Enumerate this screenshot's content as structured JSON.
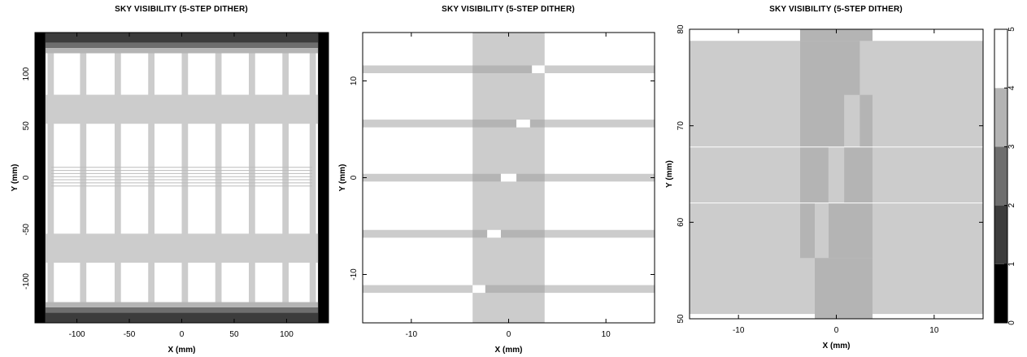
{
  "chart_data": [
    {
      "type": "heatmap",
      "title": "SKY VISIBILITY (5-STEP DITHER)",
      "xlabel": "X (mm)",
      "ylabel": "Y (mm)",
      "xlim": [
        -140,
        140
      ],
      "ylim": [
        -140,
        140
      ],
      "xticks": [
        -100,
        -50,
        0,
        50,
        100
      ],
      "yticks": [
        -100,
        -50,
        0,
        50,
        100
      ],
      "background_level": 5,
      "regions": [
        {
          "x": [
            -140,
            -130
          ],
          "y": [
            -140,
            140
          ],
          "level": 0
        },
        {
          "x": [
            130,
            140
          ],
          "y": [
            -140,
            140
          ],
          "level": 0
        },
        {
          "x": [
            -130,
            130
          ],
          "y": [
            130,
            140
          ],
          "level": 1
        },
        {
          "x": [
            -130,
            130
          ],
          "y": [
            125,
            130
          ],
          "level": 2
        },
        {
          "x": [
            -130,
            130
          ],
          "y": [
            120,
            125
          ],
          "level": 3
        },
        {
          "x": [
            -130,
            130
          ],
          "y": [
            -140,
            -130
          ],
          "level": 1
        },
        {
          "x": [
            -130,
            130
          ],
          "y": [
            -130,
            -125
          ],
          "level": 2
        },
        {
          "x": [
            -130,
            130
          ],
          "y": [
            -125,
            -120
          ],
          "level": 3
        },
        {
          "x": [
            -130,
            130
          ],
          "y": [
            52,
            80
          ],
          "level": 4
        },
        {
          "x": [
            -130,
            130
          ],
          "y": [
            -82,
            -54
          ],
          "level": 4
        },
        {
          "x": [
            -128,
            -122
          ],
          "y": [
            -120,
            120
          ],
          "level": 4
        },
        {
          "x": [
            -97,
            -91
          ],
          "y": [
            -120,
            120
          ],
          "level": 4
        },
        {
          "x": [
            -64,
            -58
          ],
          "y": [
            -120,
            120
          ],
          "level": 4
        },
        {
          "x": [
            -32,
            -26
          ],
          "y": [
            -120,
            120
          ],
          "level": 4
        },
        {
          "x": [
            0,
            6
          ],
          "y": [
            -120,
            120
          ],
          "level": 4
        },
        {
          "x": [
            32,
            38
          ],
          "y": [
            -120,
            120
          ],
          "level": 4
        },
        {
          "x": [
            64,
            70
          ],
          "y": [
            -120,
            120
          ],
          "level": 4
        },
        {
          "x": [
            96,
            102
          ],
          "y": [
            -120,
            120
          ],
          "level": 4
        },
        {
          "x": [
            122,
            128
          ],
          "y": [
            -120,
            120
          ],
          "level": 4
        }
      ],
      "lines_y": [
        10,
        7,
        4,
        1,
        -2,
        -5,
        -8
      ]
    },
    {
      "type": "heatmap",
      "title": "SKY VISIBILITY (5-STEP DITHER)",
      "xlabel": "X (mm)",
      "ylabel": "Y (mm)",
      "xlim": [
        -15,
        15
      ],
      "ylim": [
        -15,
        15
      ],
      "xticks": [
        -10,
        0,
        10
      ],
      "yticks": [
        -10,
        0,
        10
      ],
      "background_level": 5,
      "regions": [
        {
          "x": [
            -15,
            15
          ],
          "y": [
            10.8,
            11.6
          ],
          "level": 4
        },
        {
          "x": [
            -15,
            15
          ],
          "y": [
            5.2,
            6
          ],
          "level": 4
        },
        {
          "x": [
            -15,
            15
          ],
          "y": [
            -0.4,
            0.4
          ],
          "level": 4
        },
        {
          "x": [
            -15,
            15
          ],
          "y": [
            -6.2,
            -5.4
          ],
          "level": 4
        },
        {
          "x": [
            -15,
            15
          ],
          "y": [
            -11.9,
            -11.1
          ],
          "level": 4
        },
        {
          "x": [
            -3.7,
            3.7
          ],
          "y": [
            -15,
            15
          ],
          "level": 4
        },
        {
          "x": [
            -3.7,
            2.4
          ],
          "y": [
            10.8,
            11.6
          ],
          "level": 3
        },
        {
          "x": [
            -3.7,
            0.8
          ],
          "y": [
            5.2,
            6
          ],
          "level": 3
        },
        {
          "x": [
            2.2,
            3.7
          ],
          "y": [
            5.2,
            6
          ],
          "level": 3
        },
        {
          "x": [
            -3.7,
            -0.8
          ],
          "y": [
            -0.4,
            0.4
          ],
          "level": 3
        },
        {
          "x": [
            0.8,
            3.7
          ],
          "y": [
            -0.4,
            0.4
          ],
          "level": 3
        },
        {
          "x": [
            -3.7,
            -2.2
          ],
          "y": [
            -6.2,
            -5.4
          ],
          "level": 3
        },
        {
          "x": [
            -0.8,
            3.7
          ],
          "y": [
            -6.2,
            -5.4
          ],
          "level": 3
        },
        {
          "x": [
            -2.4,
            3.7
          ],
          "y": [
            -11.9,
            -11.1
          ],
          "level": 3
        },
        {
          "x": [
            2.4,
            3.7
          ],
          "y": [
            10.8,
            11.6
          ],
          "level": 5
        },
        {
          "x": [
            0.8,
            2.2
          ],
          "y": [
            5.2,
            6
          ],
          "level": 5
        },
        {
          "x": [
            -0.8,
            0.8
          ],
          "y": [
            -0.4,
            0.4
          ],
          "level": 5
        },
        {
          "x": [
            -2.2,
            -0.8
          ],
          "y": [
            -6.2,
            -5.4
          ],
          "level": 5
        },
        {
          "x": [
            -3.7,
            -2.4
          ],
          "y": [
            -11.9,
            -11.1
          ],
          "level": 5
        }
      ]
    },
    {
      "type": "heatmap",
      "title": "SKY VISIBILITY (5-STEP DITHER)",
      "xlabel": "X (mm)",
      "ylabel": "Y (mm)",
      "xlim": [
        -15,
        15
      ],
      "ylim": [
        50,
        80
      ],
      "xticks": [
        -10,
        0,
        10
      ],
      "yticks": [
        50,
        60,
        70,
        80
      ],
      "background_level": 4,
      "regions": [
        {
          "x": [
            -15,
            -3.7
          ],
          "y": [
            78.8,
            80
          ],
          "level": 5
        },
        {
          "x": [
            3.7,
            15
          ],
          "y": [
            78.8,
            80
          ],
          "level": 5
        },
        {
          "x": [
            -15,
            -2.2
          ],
          "y": [
            50,
            50.5
          ],
          "level": 5
        },
        {
          "x": [
            3.7,
            15
          ],
          "y": [
            50,
            50.5
          ],
          "level": 5
        },
        {
          "x": [
            -3.7,
            3.7
          ],
          "y": [
            78.8,
            80
          ],
          "level": 3
        },
        {
          "x": [
            -3.7,
            2.4
          ],
          "y": [
            67.8,
            78.8
          ],
          "level": 3
        },
        {
          "x": [
            2.4,
            3.7
          ],
          "y": [
            67.8,
            73.2
          ],
          "level": 3
        },
        {
          "x": [
            0.8,
            2.4
          ],
          "y": [
            67.8,
            73.2
          ],
          "level": 4
        },
        {
          "x": [
            -3.7,
            -0.8
          ],
          "y": [
            62,
            67.8
          ],
          "level": 3
        },
        {
          "x": [
            0.8,
            3.7
          ],
          "y": [
            62,
            67.8
          ],
          "level": 3
        },
        {
          "x": [
            -0.8,
            0.8
          ],
          "y": [
            62,
            67.8
          ],
          "level": 4
        },
        {
          "x": [
            -3.7,
            -2.2
          ],
          "y": [
            56.3,
            62
          ],
          "level": 3
        },
        {
          "x": [
            -0.8,
            3.7
          ],
          "y": [
            56.3,
            62
          ],
          "level": 3
        },
        {
          "x": [
            -2.2,
            -0.8
          ],
          "y": [
            56.3,
            62
          ],
          "level": 4
        },
        {
          "x": [
            -2.2,
            3.7
          ],
          "y": [
            50,
            56.3
          ],
          "level": 3
        }
      ],
      "lines_y": [
        67.8,
        62
      ],
      "colorbar": {
        "min": 0,
        "max": 5,
        "ticks": [
          0,
          1,
          2,
          3,
          4,
          5
        ]
      }
    }
  ],
  "colors": {
    "level_0": "#000000",
    "level_1": "#3c3c3c",
    "level_2": "#6e6e6e",
    "level_3": "#b4b4b4",
    "level_4": "#cccccc",
    "level_5": "#ffffff",
    "lines": "#ffffff"
  }
}
